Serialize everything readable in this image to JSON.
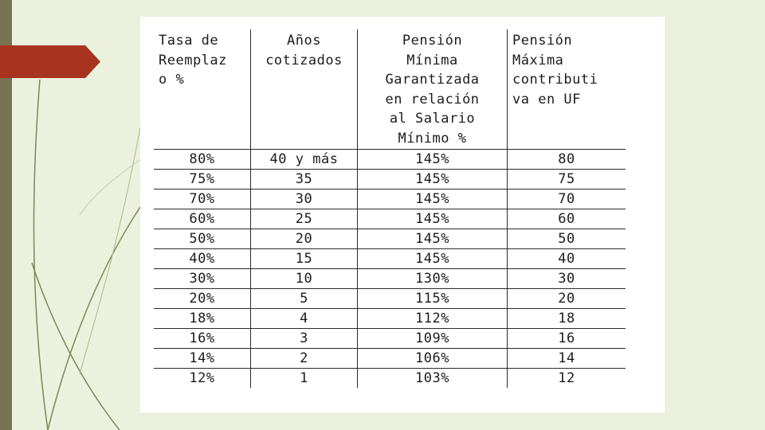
{
  "table": {
    "headers": [
      "Tasa de\nReemplaz\no %",
      "Años\ncotizados",
      "Pensión\nMínima\nGarantizada\nen relación\nal Salario\nMínimo %",
      "Pensión\nMáxima\ncontributi\nva en UF"
    ],
    "rows": [
      [
        "80%",
        "40 y más",
        "145%",
        "80"
      ],
      [
        "75%",
        "35",
        "145%",
        "75"
      ],
      [
        "70%",
        "30",
        "145%",
        "70"
      ],
      [
        "60%",
        "25",
        "145%",
        "60"
      ],
      [
        "50%",
        "20",
        "145%",
        "50"
      ],
      [
        "40%",
        "15",
        "145%",
        "40"
      ],
      [
        "30%",
        "10",
        "130%",
        "30"
      ],
      [
        "20%",
        "5",
        "115%",
        "20"
      ],
      [
        "18%",
        "4",
        "112%",
        "18"
      ],
      [
        "16%",
        "3",
        "109%",
        "16"
      ],
      [
        "14%",
        "2",
        "106%",
        "14"
      ],
      [
        "12%",
        "1",
        "103%",
        "12"
      ]
    ]
  },
  "colors": {
    "background": "#ecf1dd",
    "left_bar": "#7a7353",
    "arrow": "#a8331e",
    "panel": "#ffffff",
    "text": "#1c1c1c"
  }
}
